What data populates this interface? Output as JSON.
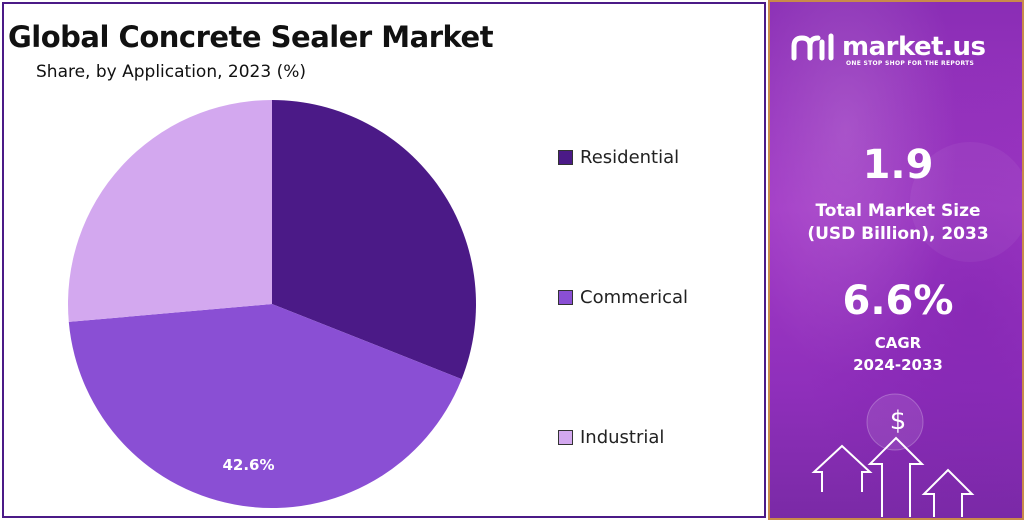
{
  "chart_data": {
    "type": "pie",
    "title": "Global Concrete Sealer Market",
    "subtitle": "Share, by Application, 2023 (%)",
    "slices": [
      {
        "name": "Residential",
        "value": 31.0,
        "color": "#4b1a87"
      },
      {
        "name": "Commerical",
        "value": 42.6,
        "color": "#8a4fd4",
        "data_label": "42.6%"
      },
      {
        "name": "Industrial",
        "value": 26.4,
        "color": "#d3a8ef"
      }
    ],
    "legend_position": "right",
    "start_angle_deg": 0
  },
  "side_panel": {
    "brand": "market.us",
    "tagline": "ONE STOP SHOP FOR THE REPORTS",
    "stats": [
      {
        "value": "1.9",
        "label_line1": "Total Market Size",
        "label_line2": "(USD Billion), 2033"
      },
      {
        "value": "6.6%",
        "label_line1": "CAGR",
        "label_line2": "2024-2033"
      }
    ],
    "currency_symbol": "$"
  }
}
